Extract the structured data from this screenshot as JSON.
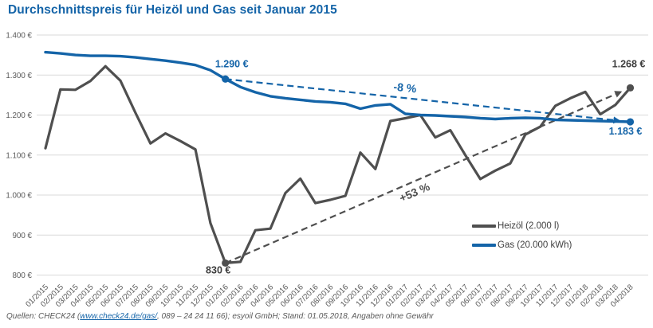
{
  "title": "Durchschnittspreis für Heizöl und Gas seit Januar 2015",
  "colors": {
    "accent_blue": "#1464a8",
    "oil_gray": "#4f4f4f",
    "grid": "#d9d9d9",
    "tick_text": "#595959",
    "annotation_dark": "#3d3d3d"
  },
  "legend": {
    "items": [
      {
        "label": "Heizöl (2.000 l)",
        "color": "#4f4f4f"
      },
      {
        "label": "Gas (20.000 kWh)",
        "color": "#1464a8"
      }
    ]
  },
  "footer": {
    "prefix": "Quellen: CHECK24 (",
    "link_text": "www.check24.de/gas/",
    "suffix": ", 089 – 24 24 11 66); esyoil GmbH; Stand: 01.05.2018, Angaben ohne Gewähr"
  },
  "chart_data": {
    "type": "line",
    "title": "Durchschnittspreis für Heizöl und Gas seit Januar 2015",
    "xlabel": "",
    "ylabel": "",
    "ylim": [
      800,
      1400
    ],
    "grid": "horizontal",
    "legend_position": "inside-right",
    "x": [
      "01/2015",
      "02/2015",
      "03/2015",
      "04/2015",
      "05/2015",
      "06/2015",
      "07/2015",
      "08/2015",
      "09/2015",
      "10/2015",
      "11/2015",
      "12/2015",
      "01/2016",
      "02/2016",
      "03/2016",
      "04/2016",
      "05/2016",
      "06/2016",
      "07/2016",
      "08/2016",
      "09/2016",
      "10/2016",
      "11/2016",
      "12/2016",
      "01/2017",
      "02/2017",
      "03/2017",
      "04/2017",
      "05/2017",
      "06/2017",
      "07/2017",
      "08/2017",
      "09/2017",
      "10/2017",
      "11/2017",
      "12/2017",
      "01/2018",
      "02/2018",
      "03/2018",
      "04/2018"
    ],
    "yticks": [
      {
        "value": 1400,
        "label": "1.400 €"
      },
      {
        "value": 1300,
        "label": "1.300 €"
      },
      {
        "value": 1200,
        "label": "1.200 €"
      },
      {
        "value": 1100,
        "label": "1.100 €"
      },
      {
        "value": 1000,
        "label": "1.000 €"
      },
      {
        "value": 900,
        "label": "900 €"
      },
      {
        "value": 800,
        "label": "800 €"
      }
    ],
    "series": [
      {
        "name": "Heizöl (2.000 l)",
        "color": "#4f4f4f",
        "values": [
          1117,
          1264,
          1263,
          1285,
          1322,
          1286,
          1206,
          1129,
          1154,
          1135,
          1114,
          930,
          830,
          833,
          912,
          916,
          1005,
          1041,
          980,
          988,
          998,
          1106,
          1065,
          1185,
          1192,
          1200,
          1144,
          1162,
          1100,
          1040,
          1061,
          1079,
          1151,
          1171,
          1223,
          1242,
          1258,
          1202,
          1225,
          1268
        ]
      },
      {
        "name": "Gas (20.000 kWh)",
        "color": "#1464a8",
        "values": [
          1357,
          1354,
          1350,
          1348,
          1348,
          1347,
          1344,
          1340,
          1336,
          1331,
          1325,
          1312,
          1290,
          1270,
          1257,
          1247,
          1242,
          1238,
          1234,
          1232,
          1228,
          1216,
          1224,
          1227,
          1203,
          1200,
          1199,
          1197,
          1195,
          1192,
          1190,
          1192,
          1193,
          1192,
          1188,
          1187,
          1186,
          1185,
          1184,
          1183
        ]
      }
    ],
    "annotations": [
      {
        "id": "gas-start",
        "text": "1.290 €",
        "series": 1,
        "index": 12,
        "color": "#1464a8"
      },
      {
        "id": "gas-end",
        "text": "1.183 €",
        "series": 1,
        "index": 39,
        "color": "#1464a8"
      },
      {
        "id": "oil-start",
        "text": "830 €",
        "series": 0,
        "index": 12,
        "color": "#3d3d3d"
      },
      {
        "id": "oil-end",
        "text": "1.268 €",
        "series": 0,
        "index": 39,
        "color": "#3d3d3d"
      }
    ],
    "arrows": [
      {
        "id": "gas-trend",
        "series": 1,
        "from_index": 12,
        "to_index": 39,
        "color": "#1464a8",
        "label": "-8 %"
      },
      {
        "id": "oil-trend",
        "series": 0,
        "from_index": 12,
        "to_index": 39,
        "color": "#4f4f4f",
        "label": "+53 %"
      }
    ]
  }
}
